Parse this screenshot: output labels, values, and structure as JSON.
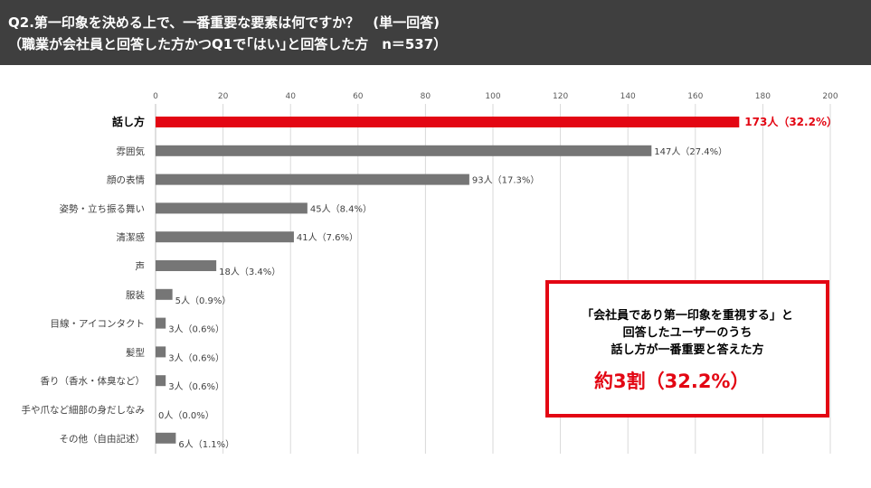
{
  "header": {
    "title_line1": "Q2.第一印象を決める上で、一番重要な要素は何ですか？　(単一回答)",
    "title_line2": "（職業が会社員と回答した方かつQ1で｢はい｣と回答した方　n＝537）"
  },
  "chart_data": {
    "type": "bar",
    "orientation": "horizontal",
    "categories": [
      "話し方",
      "雰囲気",
      "顔の表情",
      "姿勢・立ち振る舞い",
      "清潔感",
      "声",
      "服装",
      "目線・アイコンタクト",
      "髪型",
      "香り（香水・体臭など）",
      "手や爪など細部の身だしなみ",
      "その他（自由記述）"
    ],
    "values": [
      173,
      147,
      93,
      45,
      41,
      18,
      5,
      3,
      3,
      3,
      0,
      6
    ],
    "data_labels": [
      "173人（32.2%）",
      "147人（27.4%）",
      "93人（17.3%）",
      "45人（8.4%）",
      "41人（7.6%）",
      "18人（3.4%）",
      "5人（0.9%）",
      "3人（0.6%）",
      "3人（0.6%）",
      "3人（0.6%）",
      "0人（0.0%）",
      "6人（1.1%）"
    ],
    "xlim": [
      0,
      200
    ],
    "xticks": [
      0,
      20,
      40,
      60,
      80,
      100,
      120,
      140,
      160,
      180,
      200
    ],
    "highlight_index": 0,
    "grid": true,
    "colors": {
      "bar": "#767676",
      "highlight": "#e30613",
      "grid": "#d9d9d9"
    }
  },
  "callout": {
    "line1": "「会社員であり第一印象を重視する」と",
    "line2": "回答したユーザーのうち",
    "line3": "話し方が一番重要と答えた方",
    "big": "約3割（32.2%）"
  }
}
